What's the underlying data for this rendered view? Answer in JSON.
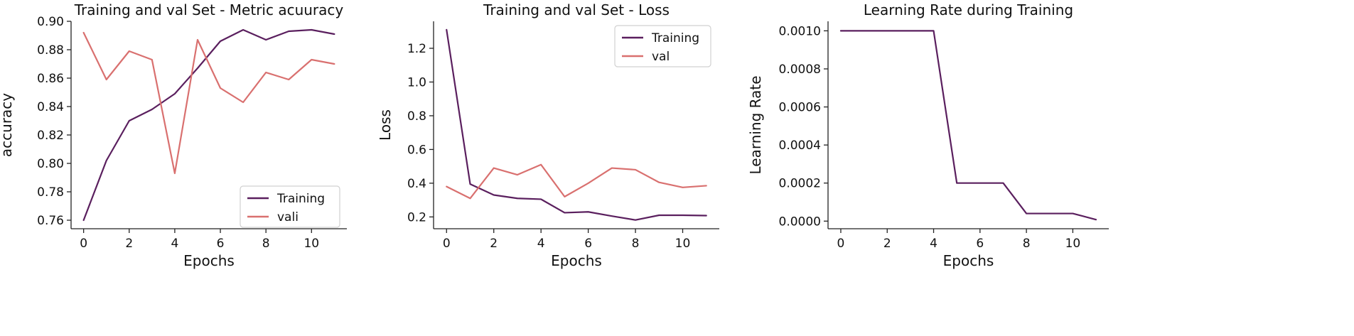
{
  "chart_data": [
    {
      "type": "line",
      "title": "Training and val Set - Metric acuuracy",
      "xlabel": "Epochs",
      "ylabel": "accuracy",
      "x": [
        0,
        1,
        2,
        3,
        4,
        5,
        6,
        7,
        8,
        9,
        10,
        11
      ],
      "xlim": [
        -0.55,
        11.55
      ],
      "ylim": [
        0.754,
        0.9
      ],
      "xticks": [
        0,
        2,
        4,
        6,
        8,
        10
      ],
      "xtick_labels": [
        "0",
        "2",
        "4",
        "6",
        "8",
        "10"
      ],
      "yticks": [
        0.76,
        0.78,
        0.8,
        0.82,
        0.84,
        0.86,
        0.88,
        0.9
      ],
      "ytick_labels": [
        "0.76",
        "0.78",
        "0.80",
        "0.82",
        "0.84",
        "0.86",
        "0.88",
        "0.90"
      ],
      "grid": false,
      "legend_position": "bottom-right",
      "series": [
        {
          "name": "Training",
          "color": "#5a1f5e",
          "values": [
            0.76,
            0.802,
            0.83,
            0.838,
            0.849,
            0.867,
            0.886,
            0.894,
            0.887,
            0.893,
            0.894,
            0.891
          ]
        },
        {
          "name": "vali",
          "color": "#d9706f",
          "values": [
            0.892,
            0.859,
            0.879,
            0.873,
            0.793,
            0.887,
            0.853,
            0.843,
            0.864,
            0.859,
            0.873,
            0.87
          ]
        }
      ]
    },
    {
      "type": "line",
      "title": "Training and val Set - Loss",
      "xlabel": "Epochs",
      "ylabel": "Loss",
      "x": [
        0,
        1,
        2,
        3,
        4,
        5,
        6,
        7,
        8,
        9,
        10,
        11
      ],
      "xlim": [
        -0.55,
        11.55
      ],
      "ylim": [
        0.13,
        1.36
      ],
      "xticks": [
        0,
        2,
        4,
        6,
        8,
        10
      ],
      "xtick_labels": [
        "0",
        "2",
        "4",
        "6",
        "8",
        "10"
      ],
      "yticks": [
        0.2,
        0.4,
        0.6,
        0.8,
        1.0,
        1.2
      ],
      "ytick_labels": [
        "0.2",
        "0.4",
        "0.6",
        "0.8",
        "1.0",
        "1.2"
      ],
      "grid": false,
      "legend_position": "top-right",
      "series": [
        {
          "name": "Training",
          "color": "#5a1f5e",
          "values": [
            1.31,
            0.395,
            0.33,
            0.31,
            0.305,
            0.225,
            0.23,
            0.205,
            0.182,
            0.21,
            0.21,
            0.208
          ]
        },
        {
          "name": "val",
          "color": "#d9706f",
          "values": [
            0.38,
            0.31,
            0.49,
            0.45,
            0.51,
            0.32,
            0.4,
            0.49,
            0.48,
            0.405,
            0.375,
            0.385
          ]
        }
      ]
    },
    {
      "type": "line",
      "title": "Learning Rate during Training",
      "xlabel": "Epochs",
      "ylabel": "Learning Rate",
      "x": [
        0,
        1,
        2,
        3,
        4,
        5,
        6,
        7,
        8,
        9,
        10,
        11
      ],
      "xlim": [
        -0.55,
        11.55
      ],
      "ylim": [
        -4e-05,
        0.00105
      ],
      "xticks": [
        0,
        2,
        4,
        6,
        8,
        10
      ],
      "xtick_labels": [
        "0",
        "2",
        "4",
        "6",
        "8",
        "10"
      ],
      "yticks": [
        0.0,
        0.0002,
        0.0004,
        0.0006,
        0.0008,
        0.001
      ],
      "ytick_labels": [
        "0.0000",
        "0.0002",
        "0.0004",
        "0.0006",
        "0.0008",
        "0.0010"
      ],
      "grid": false,
      "legend_position": "none",
      "series": [
        {
          "name": "Learning Rate",
          "color": "#5a1f5e",
          "values": [
            0.001,
            0.001,
            0.001,
            0.001,
            0.001,
            0.0002,
            0.0002,
            0.0002,
            4e-05,
            4e-05,
            4e-05,
            8e-06
          ]
        }
      ]
    }
  ]
}
